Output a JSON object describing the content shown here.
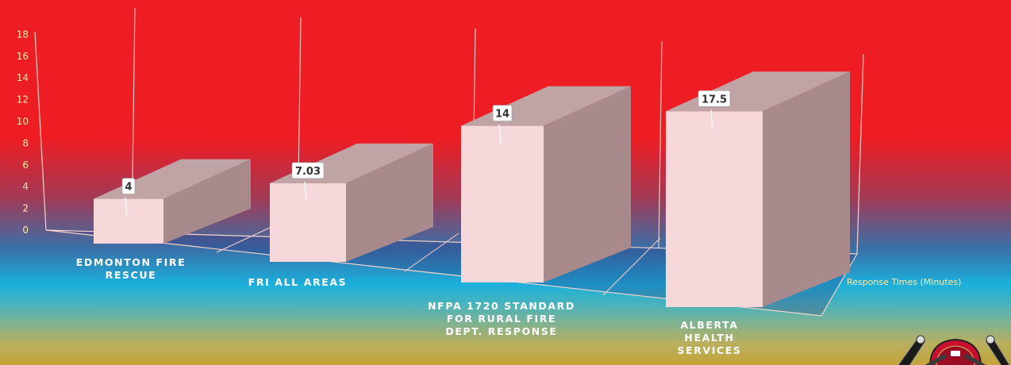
{
  "chart_data": {
    "type": "bar",
    "categories": [
      "EDMONTON FIRE\nRESCUE",
      "FRI ALL AREAS",
      "NFPA 1720 STANDARD\nFOR RURAL FIRE\nDEPT. RESPONSE",
      "ALBERTA\nHEALTH\nSERVICES"
    ],
    "values": [
      4,
      7.03,
      14,
      17.5
    ],
    "data_labels": [
      "4",
      "7.03",
      "14",
      "17.5"
    ],
    "y_ticks": [
      0,
      2,
      4,
      6,
      8,
      10,
      12,
      14,
      16,
      18
    ],
    "ylim": [
      0,
      18
    ],
    "series_label": "Response Times (Minutes)",
    "bar_color": "#f6d8da",
    "grid": false,
    "style": "3d-perspective"
  },
  "colors": {
    "background_top": "#ee1d24",
    "background_bottom": "#c4a33a",
    "bar_front": "#f6d8da",
    "bar_top": "#bfa3a5",
    "bar_side": "#a8898c",
    "axis_line": "#f7d3cc"
  },
  "logo": {
    "icon": "fire-department-crest-icon"
  }
}
